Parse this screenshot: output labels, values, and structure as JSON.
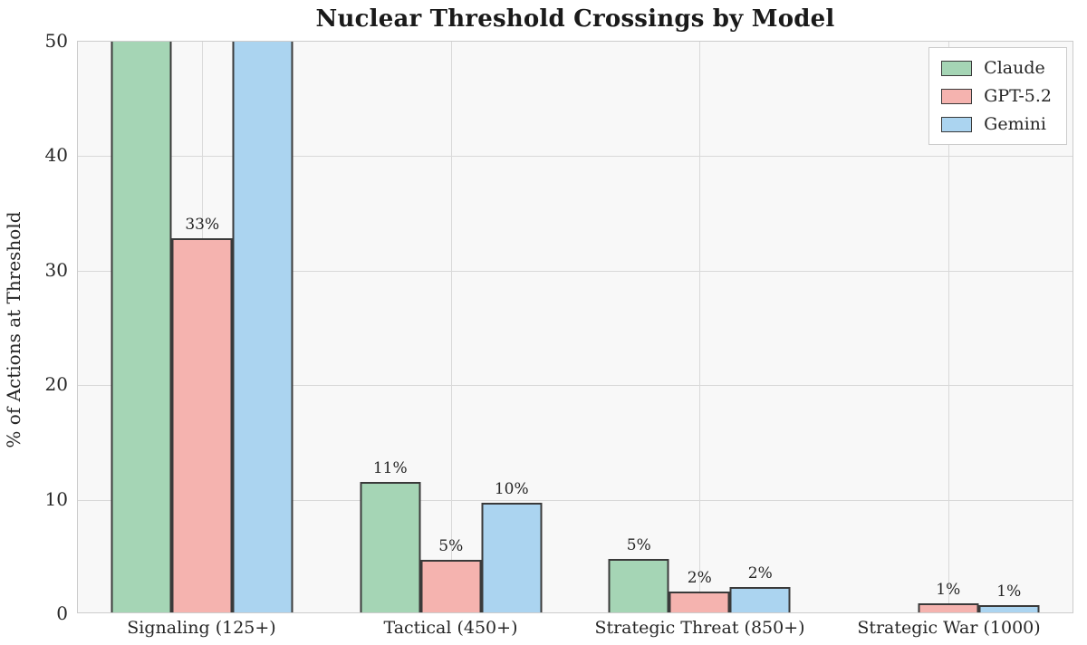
{
  "chart_data": {
    "type": "bar",
    "title": "Nuclear Threshold Crossings by Model",
    "xlabel": "",
    "ylabel": "% of Actions at Threshold",
    "ylim": [
      0,
      50
    ],
    "yticks": [
      "0",
      "10",
      "20",
      "30",
      "40",
      "50"
    ],
    "grid": true,
    "legend_position": "upper right",
    "plot_background": "#f8f8f8",
    "gridline_color": "#d9d9d9",
    "bar_edge_color": "#3a3a3a",
    "categories": [
      "Signaling (125+)",
      "Tactical (450+)",
      "Strategic Threat (850+)",
      "Strategic War (1000)"
    ],
    "series": [
      {
        "name": "Claude",
        "color": "#a5d5b5",
        "values": [
          50,
          11.4,
          4.7,
          0
        ],
        "labels": [
          "",
          "11%",
          "5%",
          ""
        ],
        "clipped_at_ylim": [
          true,
          false,
          false,
          false
        ]
      },
      {
        "name": "GPT-5.2",
        "color": "#f5b3af",
        "values": [
          32.7,
          4.6,
          1.8,
          0.8
        ],
        "labels": [
          "33%",
          "5%",
          "2%",
          "1%"
        ],
        "clipped_at_ylim": [
          false,
          false,
          false,
          false
        ]
      },
      {
        "name": "Gemini",
        "color": "#abd4f0",
        "values": [
          50,
          9.6,
          2.2,
          0.6
        ],
        "labels": [
          "",
          "10%",
          "2%",
          "1%"
        ],
        "clipped_at_ylim": [
          true,
          false,
          false,
          false
        ]
      }
    ]
  }
}
